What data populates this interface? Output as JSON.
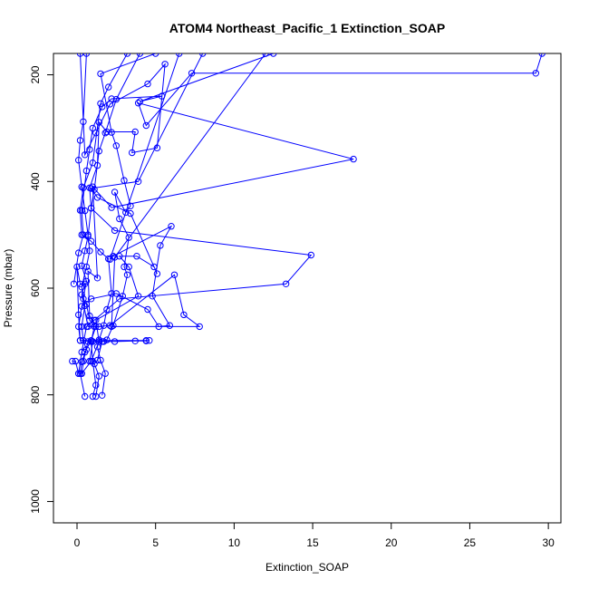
{
  "chart_data": {
    "type": "line",
    "title": "ATOM4 Northeast_Pacific_1 Extinction_SOAP",
    "xlabel": "Extinction_SOAP",
    "ylabel": "Pressure (mbar)",
    "xlim": [
      -1.5,
      30.8
    ],
    "ylim": [
      1040,
      160
    ],
    "y_reversed": true,
    "grid": false,
    "legend": "none",
    "x_ticks": [
      0,
      5,
      10,
      15,
      20,
      25,
      30
    ],
    "y_ticks": [
      200,
      400,
      600,
      800,
      1000
    ],
    "series_color": "#0000ff",
    "marker": "open-circle",
    "series": [
      {
        "x": [
          0.5,
          0.2,
          0.3,
          0.6,
          0.4,
          0.3,
          0.5,
          0.3,
          0.6,
          0.8,
          0.7,
          0.5,
          0.3,
          0.1,
          0.2,
          0.4,
          0.6
        ],
        "y": [
          803,
          760,
          738,
          715,
          698,
          672,
          633,
          598,
          560,
          530,
          500,
          455,
          410,
          360,
          323,
          288,
          160
        ]
      },
      {
        "x": [
          1.0,
          1.2,
          1.0,
          0.9,
          1.1,
          0.8,
          0.6,
          0.4,
          0.6,
          0.3,
          0.5,
          0.7,
          0.9,
          1.1,
          1.4,
          1.8,
          2.5,
          4.0
        ],
        "y": [
          803,
          782,
          737,
          700,
          672,
          660,
          630,
          620,
          587,
          558,
          530,
          503,
          450,
          415,
          343,
          309,
          246,
          160
        ]
      },
      {
        "x": [
          1.6,
          1.8,
          1.5,
          1.3,
          1.4,
          1.7,
          1.9,
          2.2,
          2.0,
          1.5,
          0.9,
          0.3,
          0.2,
          0.4,
          1.0,
          1.5,
          2.0,
          3.2
        ],
        "y": [
          801,
          760,
          735,
          710,
          697,
          670,
          640,
          610,
          545,
          532,
          512,
          500,
          454,
          412,
          365,
          254,
          223,
          160
        ]
      },
      {
        "x": [
          1.2,
          1.4,
          1.1,
          1.3,
          1.6,
          1.9,
          2.3,
          2.9,
          3.2,
          3.0,
          3.3,
          2.7,
          2.4,
          3.1,
          3.4,
          3.0,
          2.5,
          2.2,
          1.5,
          5.0
        ],
        "y": [
          803,
          765,
          742,
          735,
          700,
          697,
          670,
          615,
          575,
          560,
          505,
          470,
          420,
          458,
          446,
          398,
          333,
          308,
          198,
          160
        ]
      },
      {
        "x": [
          0.8,
          1.0,
          0.2,
          0.1,
          0.3,
          0.9,
          2.5,
          4.5,
          5.2,
          5.9,
          4.8,
          5.3,
          6.0,
          2.3,
          2.1,
          6.5
        ],
        "y": [
          737,
          700,
          698,
          672,
          634,
          620,
          610,
          640,
          672,
          670,
          615,
          520,
          484,
          540,
          546,
          160
        ]
      },
      {
        "x": [
          0.3,
          0.9,
          1.4,
          1.2,
          3.9,
          3.3,
          2.7,
          3.8,
          4.9,
          5.1,
          3.4,
          1.3,
          0.9,
          3.9,
          8.0
        ],
        "y": [
          760,
          737,
          700,
          660,
          615,
          560,
          540,
          540,
          560,
          573,
          460,
          430,
          413,
          400,
          160
        ]
      },
      {
        "x": [
          0.4,
          0.7,
          1.7,
          2.4,
          3.7,
          4.4,
          4.6,
          4.4,
          0.2,
          0.1,
          0.0,
          0.2,
          0.5,
          0.3,
          0.7,
          1.4,
          2.1,
          6.2,
          6.8,
          7.8,
          2.2,
          2.4,
          12.0
        ],
        "y": [
          737,
          700,
          700,
          700,
          699,
          699,
          698,
          698,
          698,
          650,
          560,
          592,
          592,
          612,
          672,
          672,
          670,
          575,
          650,
          672,
          672,
          542,
          160
        ]
      },
      {
        "x": [
          -0.3,
          -0.1,
          0.1,
          0.3,
          0.6,
          1.1,
          2.7,
          13.3,
          14.9,
          2.4,
          0.9,
          0.8,
          1.3,
          1.4,
          1.9,
          3.7,
          3.5,
          5.1,
          5.6,
          4.5,
          2.1,
          1.2,
          0.5,
          0.2
        ],
        "y": [
          737,
          737,
          760,
          720,
          672,
          660,
          620,
          592,
          538,
          492,
          450,
          412,
          370,
          289,
          307,
          307,
          346,
          337,
          180,
          217,
          255,
          309,
          350,
          160
        ]
      },
      {
        "x": [
          0.1,
          0.3,
          0.5,
          0.9,
          1.2,
          0.8,
          0.7,
          1.3,
          1.0,
          2.2,
          17.6,
          3.9,
          4.4,
          7.3,
          29.2,
          29.6
        ],
        "y": [
          760,
          760,
          720,
          698,
          672,
          652,
          568,
          581,
          410,
          449,
          358,
          253,
          295,
          197,
          197,
          160
        ]
      },
      {
        "x": [
          -0.2,
          0.1,
          0.4,
          0.3,
          0.6,
          0.8,
          1.0,
          1.6,
          2.2,
          5.4,
          4.0,
          12.5
        ],
        "y": [
          592,
          534,
          500,
          454,
          380,
          340,
          300,
          260,
          245,
          240,
          250,
          160
        ]
      }
    ]
  }
}
